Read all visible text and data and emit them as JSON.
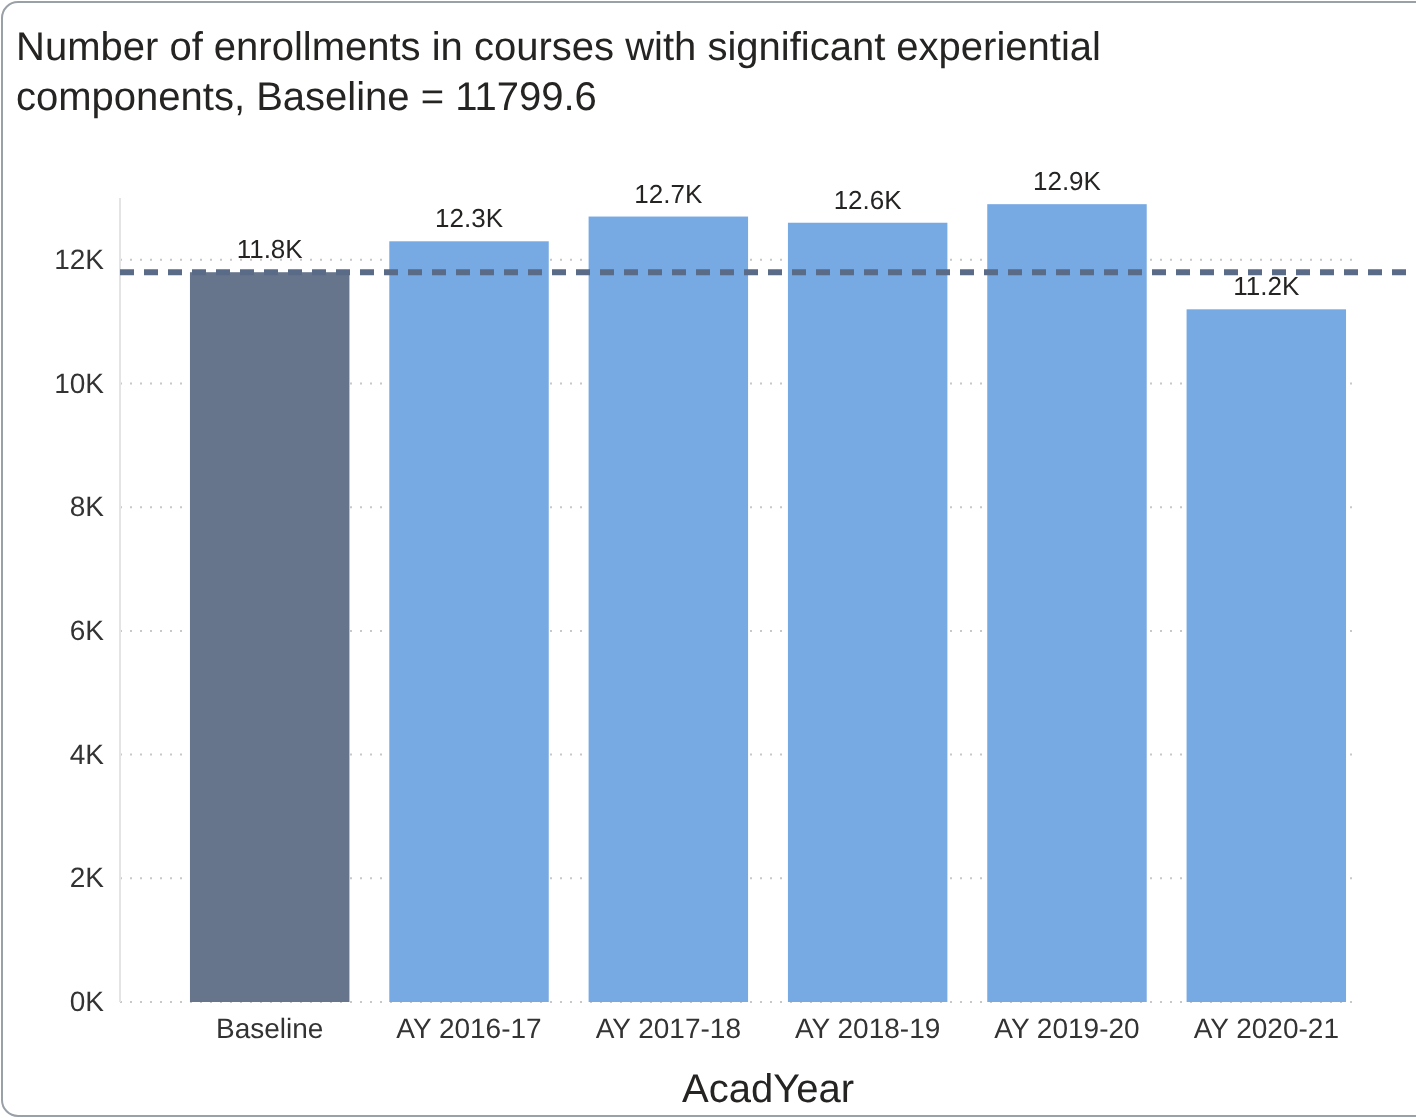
{
  "chart_data": {
    "type": "bar",
    "title": "Number of enrollments in courses with significant experiential components, Baseline = 11799.6",
    "xlabel": "AcadYear",
    "categories": [
      "Baseline",
      "AY 2016-17",
      "AY 2017-18",
      "AY 2018-19",
      "AY 2019-20",
      "AY 2020-21"
    ],
    "values": [
      11800,
      12300,
      12700,
      12600,
      12900,
      11200
    ],
    "colors": [
      "#66758c",
      "#77a9e3",
      "#77a9e3",
      "#77a9e3",
      "#77a9e3",
      "#77a9e3"
    ],
    "value_labels": [
      "11.8K",
      "12.3K",
      "12.7K",
      "12.6K",
      "12.9K",
      "11.2K"
    ],
    "ylim": [
      0,
      13000
    ],
    "yticks": [
      {
        "value": 0,
        "label": "0K"
      },
      {
        "value": 2000,
        "label": "2K"
      },
      {
        "value": 4000,
        "label": "4K"
      },
      {
        "value": 6000,
        "label": "6K"
      },
      {
        "value": 8000,
        "label": "8K"
      },
      {
        "value": 10000,
        "label": "10K"
      },
      {
        "value": 12000,
        "label": "12K"
      }
    ],
    "grid": "y",
    "ref_lines": [
      {
        "axis": "y",
        "value": 11799.6,
        "color": "#5a6b88",
        "line_style": "dashed"
      }
    ]
  }
}
